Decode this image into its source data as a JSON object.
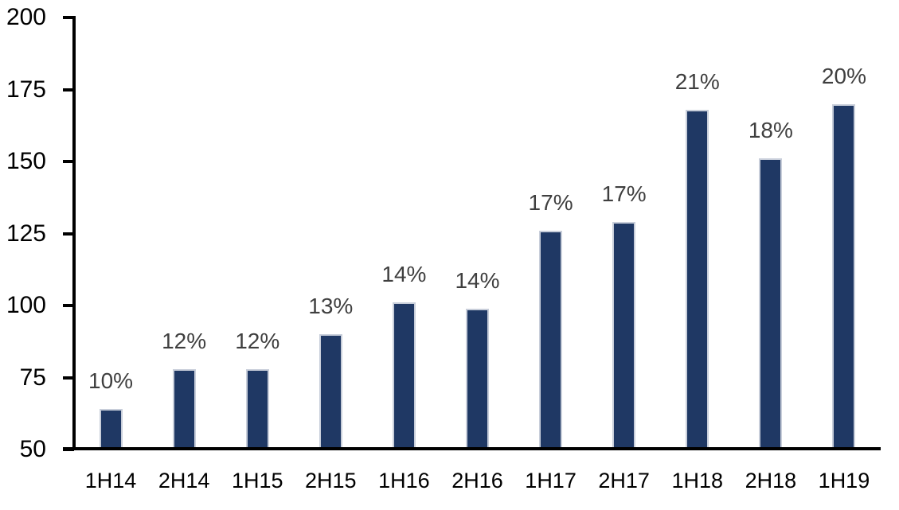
{
  "page": {
    "background": "#FFFFFF"
  },
  "chart_data": {
    "type": "bar",
    "title": "",
    "xlabel": "",
    "ylabel": "",
    "categories": [
      "1H14",
      "2H14",
      "1H15",
      "2H15",
      "1H16",
      "2H16",
      "1H17",
      "2H17",
      "1H18",
      "2H18",
      "1H19"
    ],
    "values": [
      64,
      78,
      78,
      90,
      101,
      99,
      126,
      129,
      168,
      151,
      170
    ],
    "bar_labels": [
      "10%",
      "12%",
      "12%",
      "13%",
      "14%",
      "14%",
      "17%",
      "17%",
      "21%",
      "18%",
      "20%"
    ],
    "ylim": [
      50,
      200
    ],
    "yticks": [
      50,
      75,
      100,
      125,
      150,
      175,
      200
    ],
    "ytick_labels": [
      "50",
      "75",
      "100",
      "125",
      "150",
      "175",
      "200"
    ],
    "grid": false,
    "legend": false,
    "colors": {
      "bar_fill": "#1F3864",
      "bar_border": "#C8CEDA",
      "bar_label_text": "#3F3F3F",
      "axis_text": "#000000",
      "axis_line": "#000000",
      "background": "#FFFFFF"
    }
  }
}
